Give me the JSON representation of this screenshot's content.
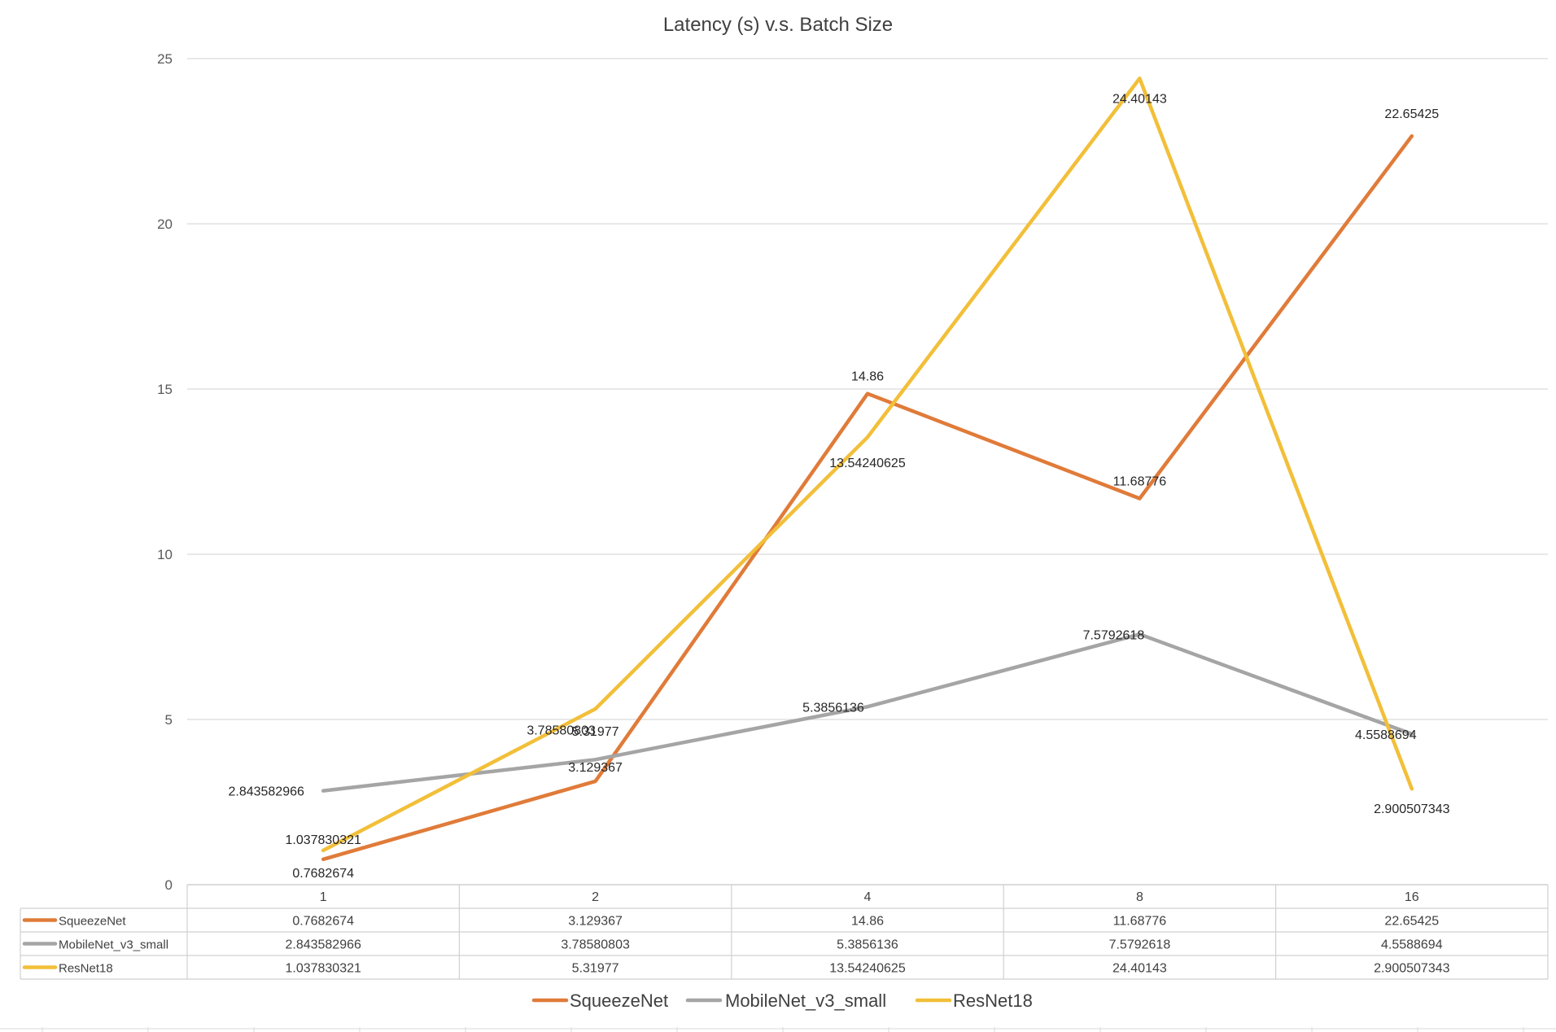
{
  "chart_data": {
    "type": "line",
    "title": "Latency (s) v.s. Batch Size",
    "xlabel": "",
    "ylabel": "",
    "categories": [
      "1",
      "2",
      "4",
      "8",
      "16"
    ],
    "ylim": [
      0,
      25
    ],
    "yticks": [
      0,
      5,
      10,
      15,
      20,
      25
    ],
    "grid": true,
    "legend_position": "bottom",
    "data_table": true,
    "series": [
      {
        "name": "SqueezeNet",
        "color": "#E07B39",
        "values": [
          0.7682674,
          3.129367,
          14.86,
          11.68776,
          22.65425
        ],
        "labels": [
          "0.7682674",
          "3.129367",
          "14.86",
          "11.68776",
          "22.65425"
        ]
      },
      {
        "name": "MobileNet_v3_small",
        "color": "#A5A5A5",
        "values": [
          2.843582966,
          3.78580803,
          5.3856136,
          7.5792618,
          4.5588694
        ],
        "labels": [
          "2.843582966",
          "3.78580803",
          "5.3856136",
          "7.5792618",
          "4.5588694"
        ]
      },
      {
        "name": "ResNet18",
        "color": "#F2BF39",
        "values": [
          1.037830321,
          5.31977,
          13.54240625,
          24.40143,
          2.900507343
        ],
        "labels": [
          "1.037830321",
          "5.31977",
          "13.54240625",
          "24.40143",
          "2.900507343"
        ]
      }
    ]
  }
}
